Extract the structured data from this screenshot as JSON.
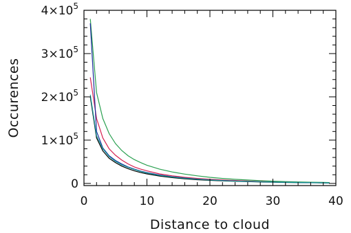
{
  "chart_data": {
    "type": "line",
    "title": "",
    "xlabel": "Distance to cloud",
    "ylabel": "Occurences",
    "xlim": [
      0,
      40
    ],
    "ylim": [
      -5000,
      400000
    ],
    "x_ticks": [
      0,
      10,
      20,
      30,
      40
    ],
    "x_tick_labels": [
      "0",
      "10",
      "20",
      "30",
      "40"
    ],
    "x_minor_step": 2,
    "y_ticks": [
      0,
      100000,
      200000,
      300000,
      400000
    ],
    "y_tick_labels": [
      {
        "mantissa": "0",
        "exponent": ""
      },
      {
        "mantissa": "1×10",
        "exponent": "5"
      },
      {
        "mantissa": "2×10",
        "exponent": "5"
      },
      {
        "mantissa": "3×10",
        "exponent": "5"
      },
      {
        "mantissa": "4×10",
        "exponent": "5"
      }
    ],
    "y_minor_step": 20000,
    "grid": false,
    "x": [
      1,
      2,
      3,
      4,
      5,
      6,
      7,
      8,
      9,
      10,
      12,
      14,
      16,
      18,
      20,
      22,
      24,
      26,
      28,
      30,
      32,
      34,
      36,
      38,
      39
    ],
    "series": [
      {
        "color": "#000000",
        "values": [
          200000,
          105000,
          75000,
          58000,
          48000,
          40000,
          34000,
          29000,
          25000,
          22000,
          17000,
          13500,
          10500,
          8500,
          7000,
          5800,
          4800,
          4000,
          3300,
          2700,
          2200,
          1800,
          1500,
          1200,
          1100
        ]
      },
      {
        "color": "#d62050",
        "values": [
          245000,
          150000,
          105000,
          80000,
          65000,
          54000,
          45000,
          38000,
          33000,
          29000,
          22000,
          17500,
          14000,
          11500,
          9500,
          8000,
          6700,
          5500,
          4500,
          3800,
          3100,
          2600,
          2100,
          1700,
          1500
        ]
      },
      {
        "color": "#2aa050",
        "values": [
          380000,
          210000,
          150000,
          115000,
          92000,
          76000,
          64000,
          55000,
          48000,
          42000,
          33000,
          26500,
          21500,
          17500,
          14000,
          11500,
          9500,
          7800,
          6400,
          5200,
          4200,
          3400,
          2800,
          2300,
          2000
        ]
      },
      {
        "color": "#1b2a9b",
        "values": [
          370000,
          120000,
          82000,
          64000,
          53000,
          45000,
          38000,
          33000,
          28500,
          25000,
          19500,
          15500,
          12500,
          10000,
          8200,
          6800,
          5600,
          4600,
          3800,
          3100,
          2500,
          2100,
          1700,
          1400,
          1200
        ]
      },
      {
        "color": "#1a9a9a",
        "values": [
          205000,
          110000,
          80000,
          62000,
          51000,
          43000,
          37000,
          32000,
          27500,
          24000,
          18500,
          14800,
          11800,
          9600,
          7900,
          6500,
          5400,
          4500,
          3700,
          3000,
          2400,
          2000,
          1600,
          1300,
          1150
        ]
      }
    ]
  }
}
